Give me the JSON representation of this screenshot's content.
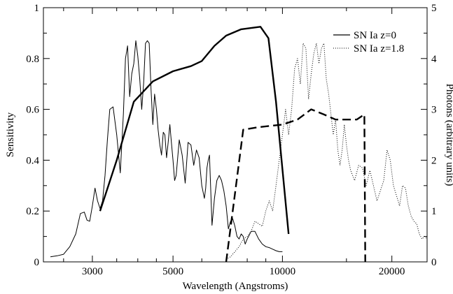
{
  "chart_data": {
    "type": "line",
    "xlabel": "Wavelength (Angstroms)",
    "ylabel_left": "Sensitivity",
    "ylabel_right": "Photons  (arbitrary units)",
    "x_scale": "log",
    "xlim": [
      2200,
      25000
    ],
    "ylim_left": [
      0,
      1
    ],
    "ylim_right": [
      0,
      5
    ],
    "x_ticks": [
      3000,
      5000,
      10000,
      20000
    ],
    "y_ticks_left": [
      0,
      0.2,
      0.4,
      0.6,
      0.8,
      1
    ],
    "y_tick_labels_left": [
      "0",
      "0.2",
      "0.4",
      "0.6",
      "0.8",
      "1"
    ],
    "y_ticks_right": [
      0,
      1,
      2,
      3,
      4,
      5
    ],
    "legend_position": "top-right",
    "series": [
      {
        "name": "SN Ia z=0",
        "axis": "right",
        "style": "thin-solid",
        "x": [
          2300,
          2400,
          2500,
          2600,
          2700,
          2780,
          2850,
          2900,
          2950,
          3000,
          3050,
          3100,
          3150,
          3200,
          3250,
          3300,
          3350,
          3420,
          3500,
          3580,
          3650,
          3700,
          3750,
          3800,
          3850,
          3900,
          3950,
          4000,
          4050,
          4100,
          4150,
          4200,
          4250,
          4300,
          4350,
          4400,
          4450,
          4500,
          4550,
          4600,
          4650,
          4700,
          4750,
          4800,
          4850,
          4900,
          4950,
          5000,
          5050,
          5100,
          5150,
          5200,
          5300,
          5400,
          5500,
          5600,
          5700,
          5800,
          5900,
          6000,
          6100,
          6150,
          6200,
          6250,
          6300,
          6400,
          6500,
          6600,
          6700,
          6800,
          6900,
          7000,
          7100,
          7200,
          7300,
          7400,
          7500,
          7600,
          7700,
          7800,
          7900,
          8000,
          8200,
          8400,
          8600,
          8800,
          9000,
          9200,
          9400,
          9600,
          9800,
          10000
        ],
        "values": [
          0.1,
          0.12,
          0.15,
          0.3,
          0.55,
          0.95,
          0.98,
          0.82,
          0.8,
          1.1,
          1.45,
          1.2,
          1.05,
          1.2,
          1.7,
          2.4,
          3.0,
          3.05,
          2.5,
          1.75,
          2.9,
          4.0,
          4.25,
          3.25,
          3.7,
          3.9,
          4.35,
          4.05,
          3.6,
          3.0,
          3.5,
          4.3,
          4.35,
          4.3,
          3.4,
          2.7,
          3.3,
          3.0,
          2.6,
          2.3,
          2.1,
          2.55,
          2.5,
          2.05,
          2.35,
          2.7,
          2.35,
          2.0,
          1.6,
          1.7,
          2.05,
          2.4,
          2.1,
          1.55,
          2.35,
          2.3,
          1.9,
          2.2,
          2.05,
          1.5,
          1.25,
          1.45,
          1.85,
          2.0,
          2.1,
          0.72,
          1.25,
          1.6,
          1.7,
          1.6,
          1.4,
          1.1,
          0.65,
          0.8,
          0.85,
          0.7,
          0.5,
          0.45,
          0.55,
          0.5,
          0.35,
          0.45,
          0.6,
          0.6,
          0.45,
          0.35,
          0.3,
          0.28,
          0.25,
          0.22,
          0.2,
          0.2
        ]
      },
      {
        "name": "SN Ia z=1.8",
        "axis": "right",
        "style": "dotted",
        "x": [
          7000,
          7200,
          7400,
          7600,
          7800,
          8000,
          8200,
          8400,
          8600,
          8800,
          9000,
          9200,
          9400,
          9600,
          9800,
          10000,
          10200,
          10400,
          10600,
          10800,
          11000,
          11200,
          11400,
          11600,
          11800,
          12000,
          12200,
          12400,
          12600,
          12800,
          13000,
          13200,
          13400,
          13600,
          13800,
          14000,
          14200,
          14400,
          14600,
          14800,
          15000,
          15200,
          15400,
          15800,
          16200,
          16600,
          17000,
          17400,
          17800,
          18200,
          18600,
          19000,
          19400,
          19800,
          20200,
          20600,
          21000,
          21400,
          21800,
          22200,
          22600,
          23000,
          23400,
          23800,
          24200,
          24600,
          25000
        ],
        "values": [
          0.05,
          0.1,
          0.2,
          0.3,
          0.45,
          0.5,
          0.6,
          0.8,
          0.75,
          0.7,
          1.0,
          1.2,
          1.0,
          1.5,
          2.0,
          2.5,
          3.0,
          2.5,
          3.0,
          3.8,
          4.0,
          3.5,
          4.3,
          4.2,
          3.2,
          3.7,
          4.1,
          4.3,
          3.9,
          4.2,
          4.3,
          3.6,
          3.3,
          2.9,
          2.5,
          2.8,
          2.2,
          1.9,
          2.2,
          2.7,
          2.3,
          2.0,
          1.8,
          1.6,
          1.9,
          1.85,
          1.5,
          1.8,
          1.5,
          1.2,
          1.4,
          1.6,
          2.2,
          2.0,
          1.5,
          1.3,
          1.1,
          1.5,
          1.45,
          1.1,
          0.9,
          0.8,
          0.75,
          0.55,
          0.45,
          0.5,
          0.45
        ]
      },
      {
        "name": "",
        "axis": "left",
        "style": "thick-solid",
        "x": [
          3150,
          3500,
          3900,
          4400,
          5000,
          5600,
          6000,
          6500,
          7000,
          7700,
          8200,
          8700,
          9150,
          9600,
          10400
        ],
        "values": [
          0.2,
          0.4,
          0.63,
          0.71,
          0.75,
          0.77,
          0.79,
          0.85,
          0.89,
          0.915,
          0.92,
          0.925,
          0.88,
          0.63,
          0.11
        ]
      },
      {
        "name": "",
        "axis": "left",
        "style": "thick-dashed",
        "x": [
          7000,
          7800,
          8600,
          10000,
          11000,
          12000,
          13000,
          14000,
          15000,
          16000,
          16800,
          16900
        ],
        "values": [
          0,
          0.52,
          0.53,
          0.54,
          0.56,
          0.6,
          0.58,
          0.56,
          0.56,
          0.56,
          0.58,
          0
        ]
      }
    ]
  }
}
